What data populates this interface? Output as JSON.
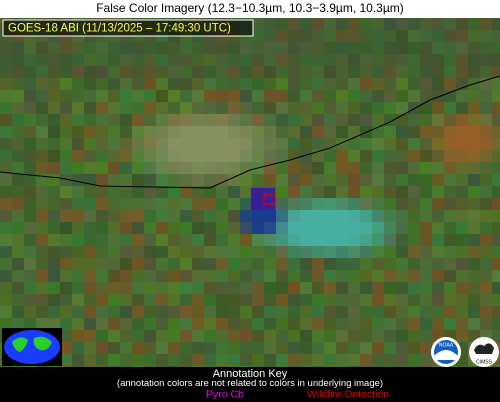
{
  "header": {
    "title": "False Color Imagery (12.3−10.3µm, 10.3−3.9µm, 10.3µm)"
  },
  "image": {
    "label": "GOES-18 ABI (11/13/2025 – 17:49:30 UTC)"
  },
  "logos": {
    "noaa": "NOAA",
    "cimss": "CIMSS"
  },
  "key": {
    "title": "Annotation Key",
    "note": "(annotation colors are not related to colors in underlying image)",
    "items": [
      {
        "label": "Pyro Cb",
        "color": "#e000e0"
      },
      {
        "label": "Wildfire Detection",
        "color": "#e00000"
      }
    ]
  }
}
